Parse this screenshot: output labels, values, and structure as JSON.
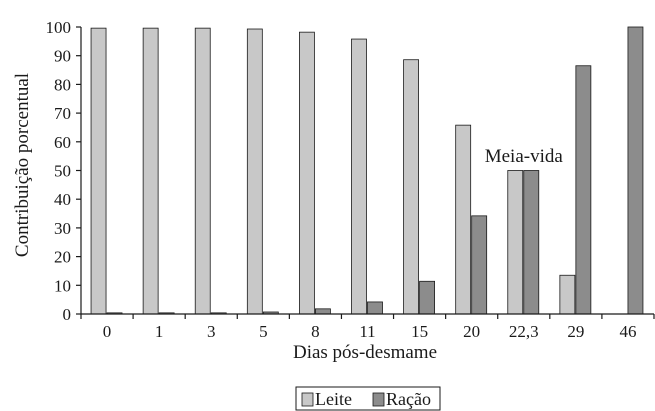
{
  "chart_data": {
    "type": "bar",
    "categories": [
      "0",
      "1",
      "3",
      "5",
      "8",
      "11",
      "15",
      "20",
      "22,3",
      "29",
      "46"
    ],
    "series": [
      {
        "name": "Leite",
        "values": [
          99.6,
          99.6,
          99.6,
          99.3,
          98.2,
          95.8,
          88.6,
          65.8,
          50.0,
          13.5,
          0
        ],
        "color": "#c8c8c8"
      },
      {
        "name": "Ração",
        "values": [
          0.4,
          0.4,
          0.4,
          0.7,
          1.8,
          4.2,
          11.4,
          34.2,
          50.0,
          86.5,
          100
        ],
        "color": "#8c8c8c"
      }
    ],
    "xlabel": "Dias pós-desmame",
    "ylabel": "Contribuição porcentual",
    "ylim": [
      0,
      100
    ],
    "yticks": [
      "0",
      "10",
      "20",
      "30",
      "40",
      "50",
      "60",
      "70",
      "80",
      "90",
      "100"
    ],
    "grid": false,
    "legend_position": "bottom-center",
    "annotation": {
      "text": "Meia-vida",
      "category": "22,3"
    }
  }
}
